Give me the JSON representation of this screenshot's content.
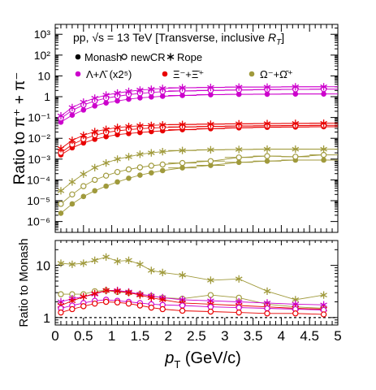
{
  "chart_data": [
    {
      "type": "scatter",
      "panel": "top",
      "ylabel": "Ratio to π⁺ + π⁻",
      "yscale": "log",
      "xlim": [
        0,
        5
      ],
      "ylim": [
        3e-07,
        3000
      ],
      "y_tick_labels": [
        "10⁻⁶",
        "10⁻⁵",
        "10⁻⁴",
        "10⁻³",
        "10⁻²",
        "10⁻¹",
        "1",
        "10",
        "10²",
        "10³"
      ],
      "header": "pp, √s = 13 TeV [Transverse, inclusive R_T]",
      "legend_models": [
        "Monash",
        "newCR",
        "Rope"
      ],
      "legend_species": [
        "Λ+Λ̄ (x2⁵)",
        "Ξ⁻+Ξ̄⁺",
        "Ω⁻+Ω̄⁺"
      ],
      "x": [
        0.1,
        0.3,
        0.5,
        0.7,
        0.9,
        1.1,
        1.3,
        1.5,
        1.7,
        1.9,
        2.25,
        2.75,
        3.25,
        3.75,
        4.25,
        4.75
      ],
      "series": [
        {
          "species": "Lambda",
          "model": "Monash",
          "color": "#cc00cc",
          "marker": "filled-circle",
          "values": [
            0.06,
            0.13,
            0.23,
            0.36,
            0.5,
            0.63,
            0.76,
            0.88,
            0.97,
            1.05,
            1.15,
            1.25,
            1.3,
            1.32,
            1.35,
            1.35
          ]
        },
        {
          "species": "Lambda",
          "model": "newCR",
          "color": "#cc00cc",
          "marker": "open-circle",
          "values": [
            0.09,
            0.22,
            0.4,
            0.62,
            0.85,
            1.05,
            1.25,
            1.45,
            1.6,
            1.75,
            1.9,
            2.0,
            2.1,
            2.2,
            2.25,
            2.3
          ]
        },
        {
          "species": "Lambda",
          "model": "Rope",
          "color": "#cc00cc",
          "marker": "star",
          "values": [
            0.12,
            0.3,
            0.55,
            0.85,
            1.2,
            1.5,
            1.8,
            2.1,
            2.3,
            2.5,
            2.7,
            2.8,
            2.9,
            2.9,
            3.0,
            3.0
          ]
        },
        {
          "species": "Xi",
          "model": "Monash",
          "color": "#e80000",
          "marker": "filled-circle",
          "values": [
            0.0016,
            0.0035,
            0.006,
            0.009,
            0.012,
            0.015,
            0.017,
            0.019,
            0.021,
            0.023,
            0.026,
            0.029,
            0.032,
            0.034,
            0.035,
            0.036
          ]
        },
        {
          "species": "Xi",
          "model": "newCR",
          "color": "#e80000",
          "marker": "open-circle",
          "values": [
            0.002,
            0.005,
            0.009,
            0.014,
            0.019,
            0.023,
            0.026,
            0.029,
            0.031,
            0.033,
            0.035,
            0.037,
            0.039,
            0.04,
            0.041,
            0.042
          ]
        },
        {
          "species": "Xi",
          "model": "Rope",
          "color": "#e80000",
          "marker": "star",
          "values": [
            0.0032,
            0.008,
            0.014,
            0.021,
            0.027,
            0.033,
            0.037,
            0.04,
            0.042,
            0.044,
            0.046,
            0.048,
            0.05,
            0.051,
            0.052,
            0.053
          ]
        },
        {
          "species": "Omega",
          "model": "Monash",
          "color": "#a09a3c",
          "marker": "filled-circle",
          "values": [
            2.5e-06,
            7e-06,
            1.6e-05,
            3e-05,
            5e-05,
            8e-05,
            0.00012,
            0.00017,
            0.00022,
            0.00028,
            0.00038,
            0.0005,
            0.0007,
            0.0008,
            0.0009,
            0.0009
          ]
        },
        {
          "species": "Omega",
          "model": "newCR",
          "color": "#a09a3c",
          "marker": "open-circle",
          "values": [
            7e-06,
            2e-05,
            5e-05,
            0.0001,
            0.00016,
            0.00024,
            0.00032,
            0.0004,
            0.00048,
            0.00055,
            0.00065,
            0.0008,
            0.0012,
            0.0014,
            0.0013,
            0.0016
          ]
        },
        {
          "species": "Omega",
          "model": "Rope",
          "color": "#a09a3c",
          "marker": "star",
          "values": [
            3e-05,
            8e-05,
            0.00019,
            0.00039,
            0.00065,
            0.001,
            0.0013,
            0.0017,
            0.002,
            0.0023,
            0.0026,
            0.0028,
            0.0029,
            0.003,
            0.003,
            0.003
          ]
        }
      ]
    },
    {
      "type": "line",
      "panel": "bottom",
      "ylabel": "Ratio to Monash",
      "xlabel": "p_T (GeV/c)",
      "yscale": "log",
      "xlim": [
        0,
        5
      ],
      "ylim": [
        0.72,
        30
      ],
      "y_tick_labels": [
        "1",
        "10"
      ],
      "x_tick_labels": [
        "0",
        "0.5",
        "1",
        "1.5",
        "2",
        "2.5",
        "3",
        "3.5",
        "4",
        "4.5",
        "5"
      ],
      "reference_line": 1,
      "x": [
        0.1,
        0.3,
        0.5,
        0.7,
        0.9,
        1.1,
        1.3,
        1.5,
        1.7,
        1.9,
        2.25,
        2.75,
        3.25,
        3.75,
        4.25,
        4.75
      ],
      "series": [
        {
          "species": "Omega",
          "model": "Rope",
          "color": "#a09a3c",
          "marker": "star",
          "values": [
            11,
            10.5,
            11,
            12.5,
            14.5,
            12,
            12.5,
            10.5,
            8,
            7.3,
            6.5,
            5.2,
            5.5,
            3.2,
            2.2,
            2.7
          ]
        },
        {
          "species": "Omega",
          "model": "newCR",
          "color": "#a09a3c",
          "marker": "open-circle",
          "values": [
            2.8,
            2.8,
            2.8,
            3.2,
            3.3,
            3.1,
            3.0,
            2.8,
            2.6,
            2.4,
            2.3,
            2.7,
            2.4,
            1.8,
            1.6,
            1.5
          ]
        },
        {
          "species": "Lambda",
          "model": "Rope",
          "color": "#cc00cc",
          "marker": "star",
          "values": [
            2.0,
            2.3,
            2.5,
            2.8,
            3.3,
            3.3,
            3.1,
            2.8,
            2.6,
            2.4,
            2.2,
            2.1,
            2.0,
            1.9,
            1.8,
            1.75
          ]
        },
        {
          "species": "Xi",
          "model": "Rope",
          "color": "#e80000",
          "marker": "star",
          "values": [
            1.7,
            2.1,
            2.5,
            2.9,
            3.3,
            3.2,
            3.0,
            2.7,
            2.4,
            2.2,
            1.9,
            1.8,
            1.7,
            1.6,
            1.5,
            1.45
          ]
        },
        {
          "species": "Lambda",
          "model": "newCR",
          "color": "#cc00cc",
          "marker": "open-circle",
          "values": [
            1.5,
            1.7,
            1.9,
            2.1,
            2.2,
            2.1,
            2.0,
            1.9,
            1.8,
            1.75,
            1.7,
            1.6,
            1.55,
            1.5,
            1.45,
            1.4
          ]
        },
        {
          "species": "Xi",
          "model": "newCR",
          "color": "#e80000",
          "marker": "open-circle",
          "values": [
            1.25,
            1.45,
            1.65,
            1.85,
            2.0,
            1.95,
            1.85,
            1.7,
            1.55,
            1.45,
            1.35,
            1.3,
            1.25,
            1.2,
            1.2,
            1.15
          ]
        }
      ]
    }
  ]
}
